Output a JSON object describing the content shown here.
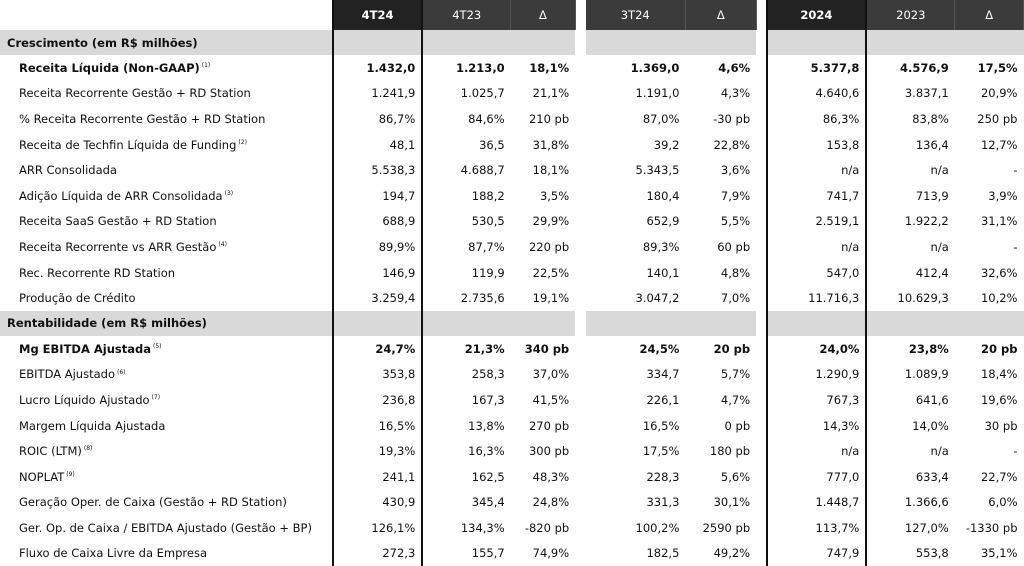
{
  "header": {
    "cols": [
      "4T24",
      "4T23",
      "Δ",
      "3T24",
      "Δ",
      "2024",
      "2023",
      "Δ"
    ]
  },
  "sections": [
    {
      "title": "Crescimento (em R$ milhões)",
      "rows": [
        {
          "label": "Receita Líquida (Non-GAAP)",
          "note": "(1)",
          "bold": true,
          "values": [
            "1.432,0",
            "1.213,0",
            "18,1%",
            "1.369,0",
            "4,6%",
            "5.377,8",
            "4.576,9",
            "17,5%"
          ]
        },
        {
          "label": "Receita Recorrente Gestão + RD Station",
          "note": "",
          "bold": false,
          "values": [
            "1.241,9",
            "1.025,7",
            "21,1%",
            "1.191,0",
            "4,3%",
            "4.640,6",
            "3.837,1",
            "20,9%"
          ]
        },
        {
          "label": "% Receita Recorrente Gestão + RD Station",
          "note": "",
          "bold": false,
          "values": [
            "86,7%",
            "84,6%",
            "210 pb",
            "87,0%",
            "-30 pb",
            "86,3%",
            "83,8%",
            "250 pb"
          ]
        },
        {
          "label": "Receita de Techfin Líquida de Funding",
          "note": "(2)",
          "bold": false,
          "values": [
            "48,1",
            "36,5",
            "31,8%",
            "39,2",
            "22,8%",
            "153,8",
            "136,4",
            "12,7%"
          ]
        },
        {
          "label": "ARR Consolidada",
          "note": "",
          "bold": false,
          "values": [
            "5.538,3",
            "4.688,7",
            "18,1%",
            "5.343,5",
            "3,6%",
            "n/a",
            "n/a",
            "-"
          ]
        },
        {
          "label": "Adição Líquida de ARR Consolidada",
          "note": "(3)",
          "bold": false,
          "values": [
            "194,7",
            "188,2",
            "3,5%",
            "180,4",
            "7,9%",
            "741,7",
            "713,9",
            "3,9%"
          ]
        },
        {
          "label": "Receita SaaS Gestão + RD Station",
          "note": "",
          "bold": false,
          "values": [
            "688,9",
            "530,5",
            "29,9%",
            "652,9",
            "5,5%",
            "2.519,1",
            "1.922,2",
            "31,1%"
          ]
        },
        {
          "label": "Receita Recorrente vs ARR Gestão",
          "note": "(4)",
          "bold": false,
          "values": [
            "89,9%",
            "87,7%",
            "220 pb",
            "89,3%",
            "60 pb",
            "n/a",
            "n/a",
            "-"
          ]
        },
        {
          "label": "Rec. Recorrente RD Station",
          "note": "",
          "bold": false,
          "values": [
            "146,9",
            "119,9",
            "22,5%",
            "140,1",
            "4,8%",
            "547,0",
            "412,4",
            "32,6%"
          ]
        },
        {
          "label": "Produção de Crédito",
          "note": "",
          "bold": false,
          "values": [
            "3.259,4",
            "2.735,6",
            "19,1%",
            "3.047,2",
            "7,0%",
            "11.716,3",
            "10.629,3",
            "10,2%"
          ]
        }
      ]
    },
    {
      "title": "Rentabilidade (em R$ milhões)",
      "rows": [
        {
          "label": "Mg EBITDA Ajustada",
          "note": "(5)",
          "bold": true,
          "values": [
            "24,7%",
            "21,3%",
            "340 pb",
            "24,5%",
            "20 pb",
            "24,0%",
            "23,8%",
            "20 pb"
          ]
        },
        {
          "label": "EBITDA Ajustado",
          "note": "(6)",
          "bold": false,
          "values": [
            "353,8",
            "258,3",
            "37,0%",
            "334,7",
            "5,7%",
            "1.290,9",
            "1.089,9",
            "18,4%"
          ]
        },
        {
          "label": "Lucro Líquido Ajustado",
          "note": "(7)",
          "bold": false,
          "values": [
            "236,8",
            "167,3",
            "41,5%",
            "226,1",
            "4,7%",
            "767,3",
            "641,6",
            "19,6%"
          ]
        },
        {
          "label": "Margem Líquida Ajustada",
          "note": "",
          "bold": false,
          "values": [
            "16,5%",
            "13,8%",
            "270 pb",
            "16,5%",
            "0 pb",
            "14,3%",
            "14,0%",
            "30 pb"
          ]
        },
        {
          "label": "ROIC (LTM)",
          "note": "(8)",
          "bold": false,
          "values": [
            "19,3%",
            "16,3%",
            "300 pb",
            "17,5%",
            "180 pb",
            "n/a",
            "n/a",
            "-"
          ]
        },
        {
          "label": "NOPLAT",
          "note": "(9)",
          "bold": false,
          "values": [
            "241,1",
            "162,5",
            "48,3%",
            "228,3",
            "5,6%",
            "777,0",
            "633,4",
            "22,7%"
          ]
        },
        {
          "label": "Geração Oper. de Caixa (Gestão + RD Station)",
          "note": "",
          "bold": false,
          "values": [
            "430,9",
            "345,4",
            "24,8%",
            "331,3",
            "30,1%",
            "1.448,7",
            "1.366,6",
            "6,0%"
          ]
        },
        {
          "label": "Ger. Op. de Caixa / EBITDA Ajustado (Gestão + BP)",
          "note": "",
          "bold": false,
          "values": [
            "126,1%",
            "134,3%",
            "-820 pb",
            "100,2%",
            "2590 pb",
            "113,7%",
            "127,0%",
            "-1330 pb"
          ]
        },
        {
          "label": "Fluxo de Caixa Livre da Empresa",
          "note": "",
          "bold": false,
          "values": [
            "272,3",
            "155,7",
            "74,9%",
            "182,5",
            "49,2%",
            "747,9",
            "553,8",
            "35,1%"
          ]
        }
      ]
    }
  ]
}
